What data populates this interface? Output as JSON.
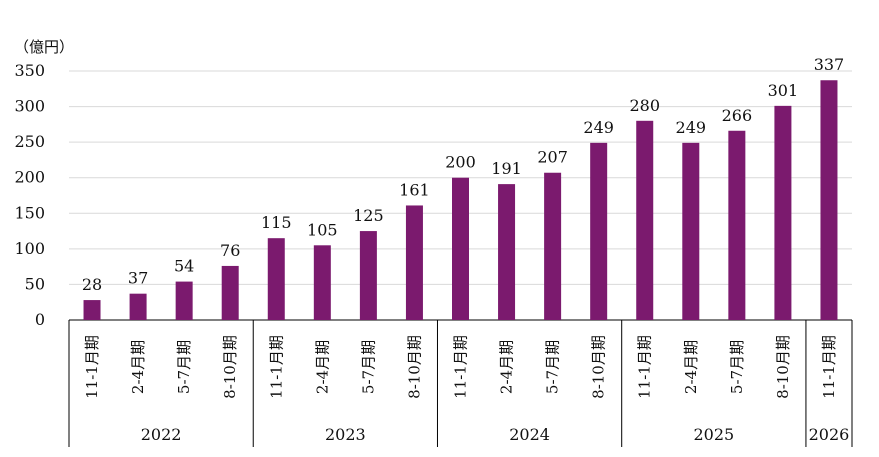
{
  "chart_data": {
    "type": "bar",
    "unit_label": "（億円）",
    "ylim": [
      0,
      350
    ],
    "yticks": [
      0,
      50,
      100,
      150,
      200,
      250,
      300,
      350
    ],
    "grid": true,
    "bar_color": "#7B1A6E",
    "categories": [
      "11-1月期",
      "2-4月期",
      "5-7月期",
      "8-10月期",
      "11-1月期",
      "2-4月期",
      "5-7月期",
      "8-10月期",
      "11-1月期",
      "2-4月期",
      "5-7月期",
      "8-10月期",
      "11-1月期",
      "2-4月期",
      "5-7月期",
      "8-10月期",
      "11-1月期"
    ],
    "values": [
      28,
      37,
      54,
      76,
      115,
      105,
      125,
      161,
      200,
      191,
      207,
      249,
      280,
      249,
      266,
      301,
      337
    ],
    "groups": [
      {
        "label": "2022",
        "count": 4
      },
      {
        "label": "2023",
        "count": 4
      },
      {
        "label": "2024",
        "count": 4
      },
      {
        "label": "2025",
        "count": 4
      },
      {
        "label": "2026",
        "count": 1
      }
    ]
  }
}
